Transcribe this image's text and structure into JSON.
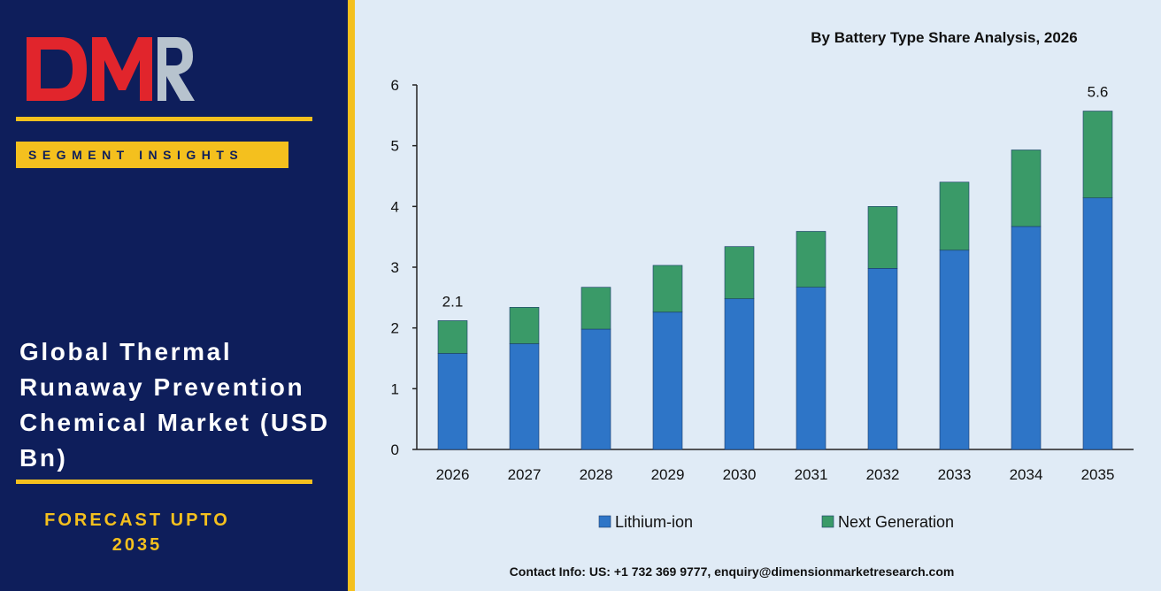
{
  "brand": {
    "logo_text": "DMR",
    "tagline": "SEGMENT INSIGHTS"
  },
  "report": {
    "title": "Global Thermal Runaway Prevention Chemical Market (USD Bn)",
    "forecast_line1": "FORECAST UPTO",
    "forecast_line2": "2035"
  },
  "contact": "Contact Info: US: +1 732 369 9777, enquiry@dimensionmarketresearch.com",
  "colors": {
    "panel": "#0e1e5b",
    "accent": "#f4c01e",
    "lithium": "#2e75c7",
    "next_gen": "#3a9a68"
  },
  "chart_data": {
    "type": "bar",
    "stacked": true,
    "title": "By Battery Type Share Analysis, 2026",
    "categories": [
      "2026",
      "2027",
      "2028",
      "2029",
      "2030",
      "2031",
      "2032",
      "2033",
      "2034",
      "2035"
    ],
    "series": [
      {
        "name": "Lithium-ion",
        "values": [
          1.58,
          1.74,
          1.98,
          2.26,
          2.48,
          2.67,
          2.98,
          3.28,
          3.67,
          4.14
        ]
      },
      {
        "name": "Next Generation",
        "values": [
          0.54,
          0.6,
          0.69,
          0.77,
          0.86,
          0.92,
          1.02,
          1.12,
          1.26,
          1.43
        ]
      }
    ],
    "data_labels": [
      {
        "category": "2026",
        "label": "2.1"
      },
      {
        "category": "2035",
        "label": "5.6"
      }
    ],
    "ylim": [
      0,
      6
    ],
    "yticks": [
      0,
      1,
      2,
      3,
      4,
      5,
      6
    ],
    "grid": false,
    "legend": "bottom"
  }
}
